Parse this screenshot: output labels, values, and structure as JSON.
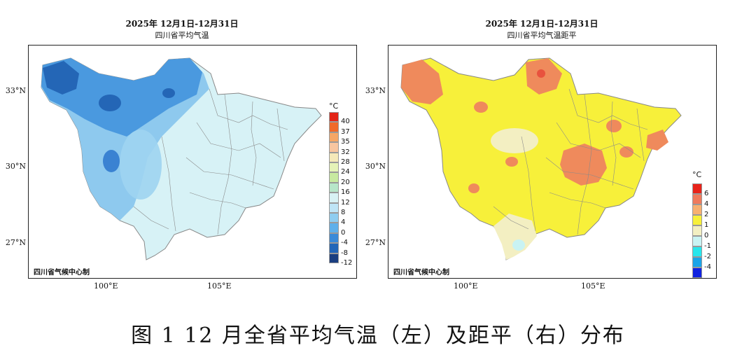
{
  "left_panel": {
    "title": "2025年 12月1日-12月31日",
    "subtitle": "四川省平均气温",
    "credit": "四川省气候中心制",
    "lat_labels": [
      "33°N",
      "30°N",
      "27°N"
    ],
    "lon_labels": [
      "100°E",
      "105°E"
    ],
    "legend_unit": "°C",
    "legend_labels": [
      "40",
      "37",
      "35",
      "32",
      "28",
      "24",
      "20",
      "16",
      "12",
      "8",
      "4",
      "0",
      "-4",
      "-8",
      "-12"
    ],
    "legend_colors": [
      "#e32416",
      "#f06a2a",
      "#f6a766",
      "#f8c6a0",
      "#f5e9b9",
      "#e5f3b7",
      "#c8eaa0",
      "#b7e6c9",
      "#d8f2f4",
      "#bfe5f6",
      "#8fcdf0",
      "#5fb0ea",
      "#3a8ad8",
      "#2266b8",
      "#1a3e80"
    ]
  },
  "right_panel": {
    "title": "2025年 12月1日-12月31日",
    "subtitle": "四川省平均气温距平",
    "credit": "四川省气候中心制",
    "lat_labels": [
      "33°N",
      "30°N",
      "27°N"
    ],
    "lon_labels": [
      "100°E",
      "105°E"
    ],
    "legend_unit": "°C",
    "legend_labels": [
      "6",
      "4",
      "2",
      "1",
      "0",
      "-1",
      "-2",
      "-4"
    ],
    "legend_colors": [
      "#e8231a",
      "#ef7a5c",
      "#f7b070",
      "#f7f03a",
      "#f3efc2",
      "#c9f3f3",
      "#28e6ec",
      "#1aa4e8",
      "#1022e0"
    ]
  },
  "caption": "图 1 12 月全省平均气温（左）及距平（右）分布"
}
